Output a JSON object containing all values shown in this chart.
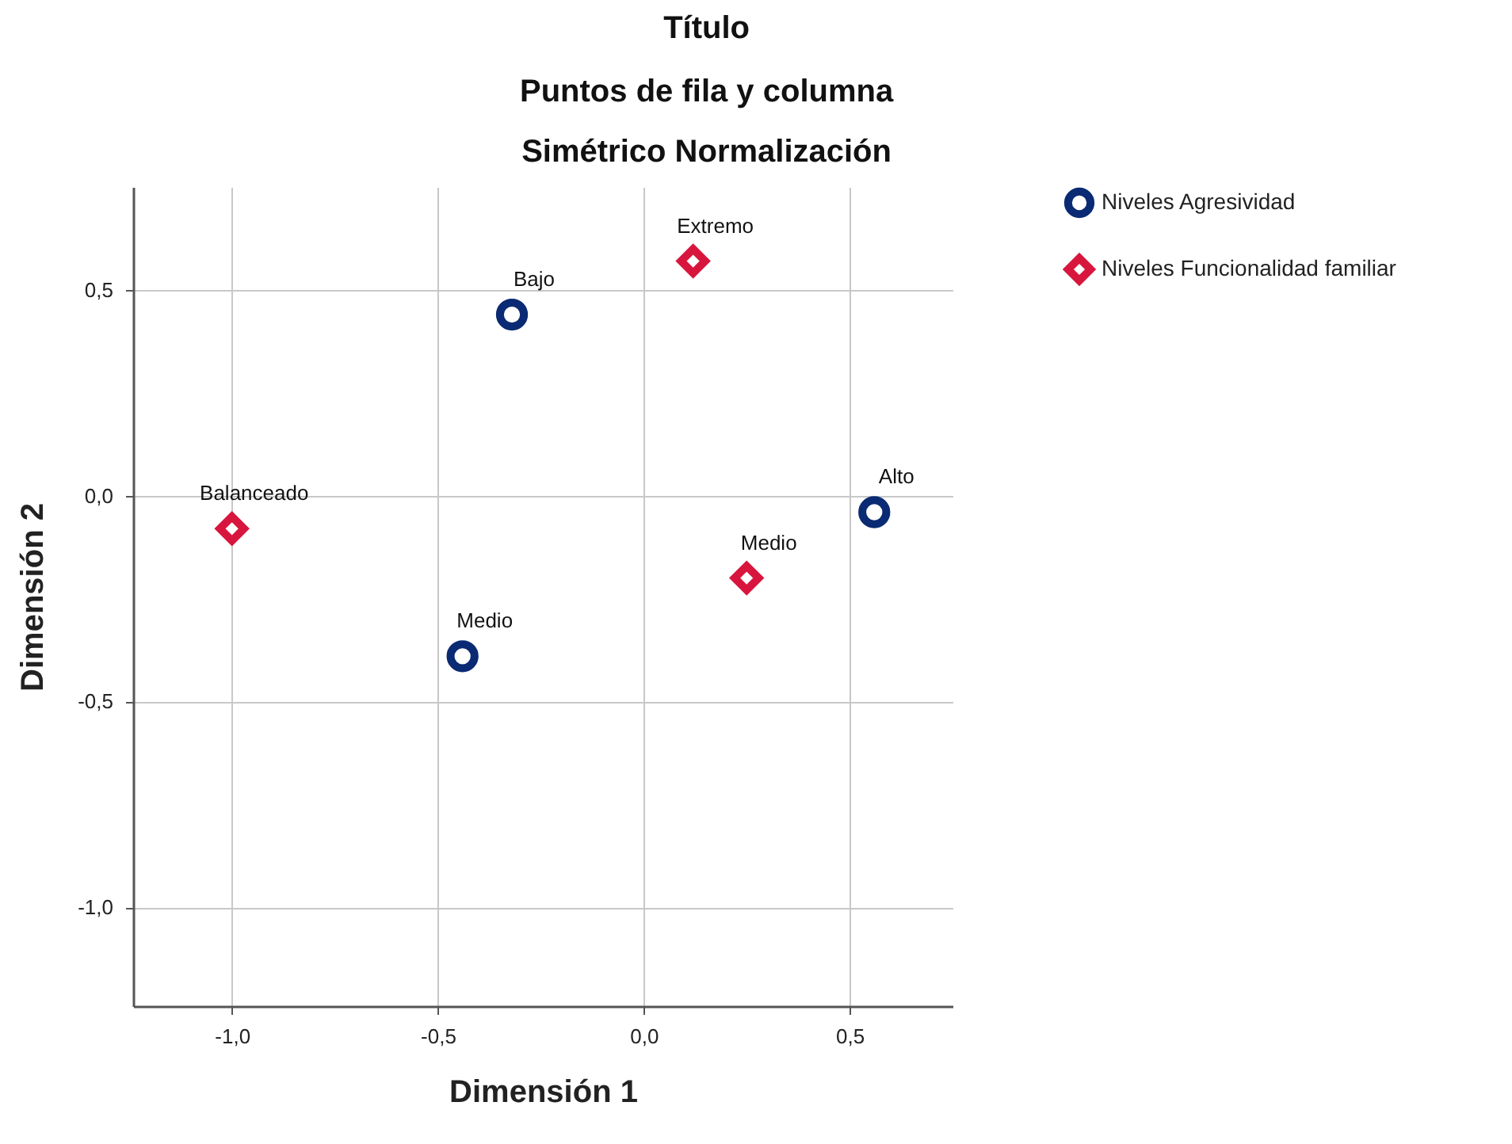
{
  "chart_data": {
    "type": "scatter",
    "title": "Título",
    "subtitle": "Puntos de fila y columna\nSimétrico Normalización",
    "xlabel": "Dimensión 1",
    "ylabel": "Dimensión 2",
    "xlim": [
      -1.24,
      0.75
    ],
    "ylim": [
      -1.24,
      0.75
    ],
    "xticks": [
      {
        "value": -1.0,
        "label": "-1,0"
      },
      {
        "value": -0.5,
        "label": "-0,5"
      },
      {
        "value": 0,
        "label": "0,0"
      },
      {
        "value": 0.5,
        "label": "0,5"
      }
    ],
    "yticks": [
      {
        "value": -1.0,
        "label": "-1,0"
      },
      {
        "value": -0.5,
        "label": "-0,5"
      },
      {
        "value": 0,
        "label": "0,0"
      },
      {
        "value": 0.5,
        "label": "0,5"
      }
    ],
    "grid": true,
    "legend": "top right",
    "series": [
      {
        "name": "Niveles Agresividad",
        "color": "#0a2a73",
        "marker": "circle",
        "x": [
          -0.32,
          0.56,
          -0.44
        ],
        "values": [
          0.44,
          -0.04,
          -0.39
        ],
        "value_labels": [
          "Bajo",
          "Alto",
          "Medio"
        ]
      },
      {
        "name": "Niveles Funcionalidad familiar",
        "color": "#d8163d",
        "marker": "diamond",
        "x": [
          0.12,
          -1.0,
          0.25
        ],
        "values": [
          0.57,
          -0.08,
          -0.2
        ],
        "value_labels": [
          "Extremo",
          "Balanceado",
          "Medio"
        ]
      }
    ]
  }
}
